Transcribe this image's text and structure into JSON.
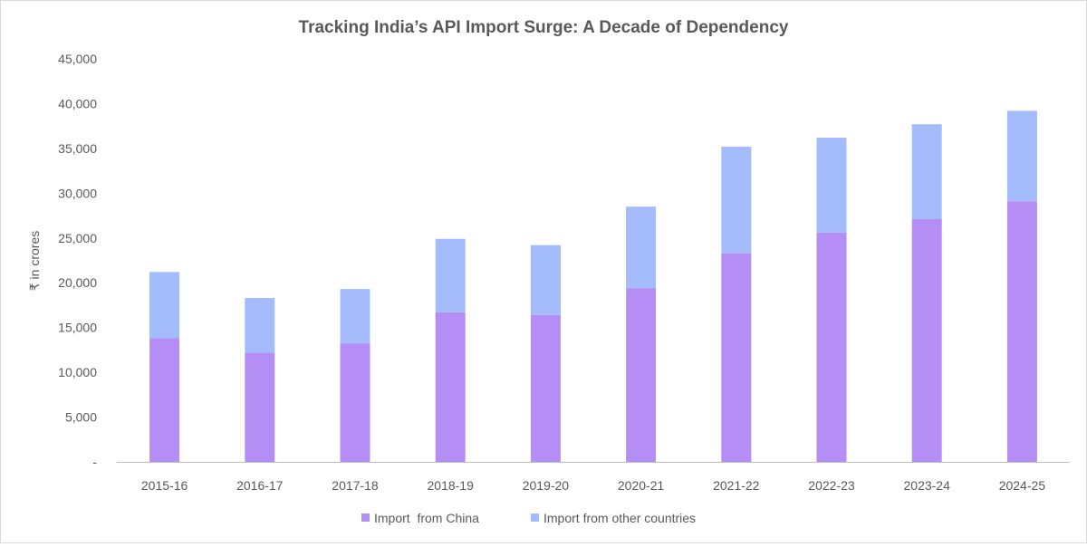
{
  "chart_data": {
    "type": "bar",
    "stacked": true,
    "title": "Tracking India’s API Import Surge: A Decade of Dependency",
    "xlabel": "",
    "ylabel": "₹ in crores",
    "ylim": [
      0,
      45000
    ],
    "yticks": [
      0,
      5000,
      10000,
      15000,
      20000,
      25000,
      30000,
      35000,
      40000,
      45000
    ],
    "ytick_labels": [
      "-",
      "5,000",
      "10,000",
      "15,000",
      "20,000",
      "25,000",
      "30,000",
      "35,000",
      "40,000",
      "45,000"
    ],
    "categories": [
      "2015-16",
      "2016-17",
      "2017-18",
      "2018-19",
      "2019-20",
      "2020-21",
      "2021-22",
      "2022-23",
      "2023-24",
      "2024-25"
    ],
    "series": [
      {
        "name": "Import  from China",
        "color": "#b48ef4",
        "values": [
          13800,
          12200,
          13200,
          16700,
          16400,
          19400,
          23300,
          25600,
          27100,
          29100
        ]
      },
      {
        "name": "Import from other countries",
        "color": "#a4bcfc",
        "values": [
          7400,
          6100,
          6100,
          8200,
          7800,
          9100,
          11900,
          10600,
          10600,
          10100
        ]
      }
    ],
    "grid": false,
    "legend_position": "bottom"
  }
}
